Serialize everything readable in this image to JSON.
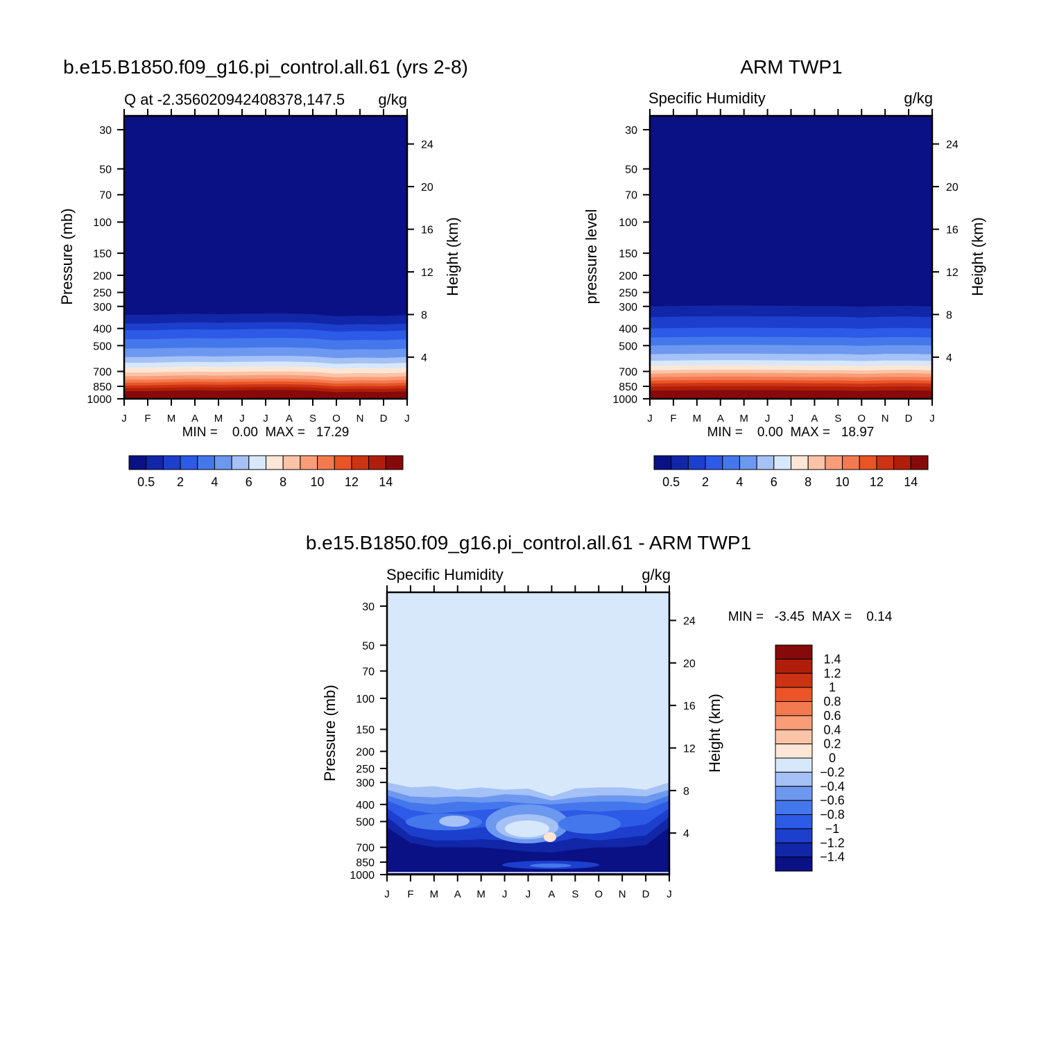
{
  "chart_data": [
    {
      "type": "heatmap",
      "title": "b.e15.B1850.f09_g16.pi_control.all.61 (yrs 2-8)",
      "left_label": "Q at -2.356020942408378,147.5",
      "right_label": "g/kg",
      "ylabel": "Pressure (mb)",
      "ylabel_right": "Height (km)",
      "x": [
        "J",
        "F",
        "M",
        "A",
        "M",
        "J",
        "J",
        "A",
        "S",
        "O",
        "N",
        "D",
        "J"
      ],
      "y_ticks": [
        30,
        50,
        70,
        100,
        150,
        200,
        250,
        300,
        400,
        500,
        700,
        850,
        1000
      ],
      "y_right_ticks": [
        4,
        8,
        12,
        16,
        20,
        24
      ],
      "stats": "MIN =    0.00  MAX =   17.29",
      "min": 0.0,
      "max": 17.29,
      "colorbar_labels": [
        "0.5",
        "2",
        "4",
        "6",
        "8",
        "10",
        "12",
        "14"
      ],
      "levels": [
        0.5,
        1,
        2,
        3,
        4,
        5,
        6,
        7,
        8,
        9,
        10,
        11,
        12,
        13,
        14
      ],
      "level_pressure": [
        335,
        375,
        410,
        460,
        520,
        580,
        625,
        665,
        710,
        745,
        780,
        810,
        840,
        870,
        905
      ],
      "seasonal_shift": [
        0,
        0,
        -5,
        -8,
        -5,
        -8,
        -10,
        -10,
        -5,
        10,
        5,
        8,
        0
      ]
    },
    {
      "type": "heatmap",
      "title": "ARM TWP1",
      "left_label": "Specific Humidity",
      "right_label": "g/kg",
      "ylabel": "pressure level",
      "ylabel_right": "Height (km)",
      "x": [
        "J",
        "F",
        "M",
        "A",
        "M",
        "J",
        "J",
        "A",
        "S",
        "O",
        "N",
        "D",
        "J"
      ],
      "y_ticks": [
        30,
        50,
        70,
        100,
        150,
        200,
        250,
        300,
        400,
        500,
        700,
        850,
        1000
      ],
      "y_right_ticks": [
        4,
        8,
        12,
        16,
        20,
        24
      ],
      "stats": "MIN =    0.00  MAX =   18.97",
      "min": 0.0,
      "max": 18.97,
      "colorbar_labels": [
        "0.5",
        "2",
        "4",
        "6",
        "8",
        "10",
        "12",
        "14"
      ],
      "levels": [
        0.5,
        1,
        2,
        3,
        4,
        5,
        6,
        7,
        8,
        9,
        10,
        11,
        12,
        13,
        14
      ],
      "level_pressure": [
        300,
        345,
        400,
        450,
        500,
        560,
        610,
        650,
        690,
        720,
        755,
        790,
        820,
        855,
        900
      ],
      "seasonal_shift": [
        0,
        -3,
        -5,
        -6,
        -6,
        -5,
        -4,
        -2,
        -3,
        2,
        -3,
        -4,
        0
      ]
    },
    {
      "type": "heatmap",
      "title": "b.e15.B1850.f09_g16.pi_control.all.61 - ARM TWP1",
      "left_label": "Specific Humidity",
      "right_label": "g/kg",
      "ylabel": "Pressure (mb)",
      "ylabel_right": "Height (km)",
      "x": [
        "J",
        "F",
        "M",
        "A",
        "M",
        "J",
        "J",
        "A",
        "S",
        "O",
        "N",
        "D",
        "J"
      ],
      "y_ticks": [
        30,
        50,
        70,
        100,
        150,
        200,
        250,
        300,
        400,
        500,
        700,
        850,
        1000
      ],
      "y_right_ticks": [
        4,
        8,
        12,
        16,
        20,
        24
      ],
      "stats": "MIN =   -3.45  MAX =    0.14",
      "min": -3.45,
      "max": 0.14,
      "colorbar_labels": [
        "1.4",
        "1.2",
        "1",
        "0.8",
        "0.6",
        "0.4",
        "0.2",
        "0",
        "-0.2",
        "-0.4",
        "-0.6",
        "-0.8",
        "-1",
        "-1.2",
        "-1.4"
      ],
      "levels": [
        -1.4,
        -1.2,
        -1,
        -0.8,
        -0.6,
        -0.4,
        -0.2,
        0,
        0.2,
        0.4,
        0.6,
        0.8,
        1,
        1.2,
        1.4
      ]
    }
  ],
  "colors": {
    "palette": [
      "#0a1184",
      "#1226a8",
      "#1d3fcd",
      "#2d5ae6",
      "#4577ec",
      "#6d98f0",
      "#a5c1f6",
      "#d7e8fb",
      "#fde6d6",
      "#fcc4a6",
      "#f99d78",
      "#f37a50",
      "#ea5426",
      "#cc3313",
      "#b01e0b",
      "#870a0a"
    ],
    "frame": "#000000"
  }
}
